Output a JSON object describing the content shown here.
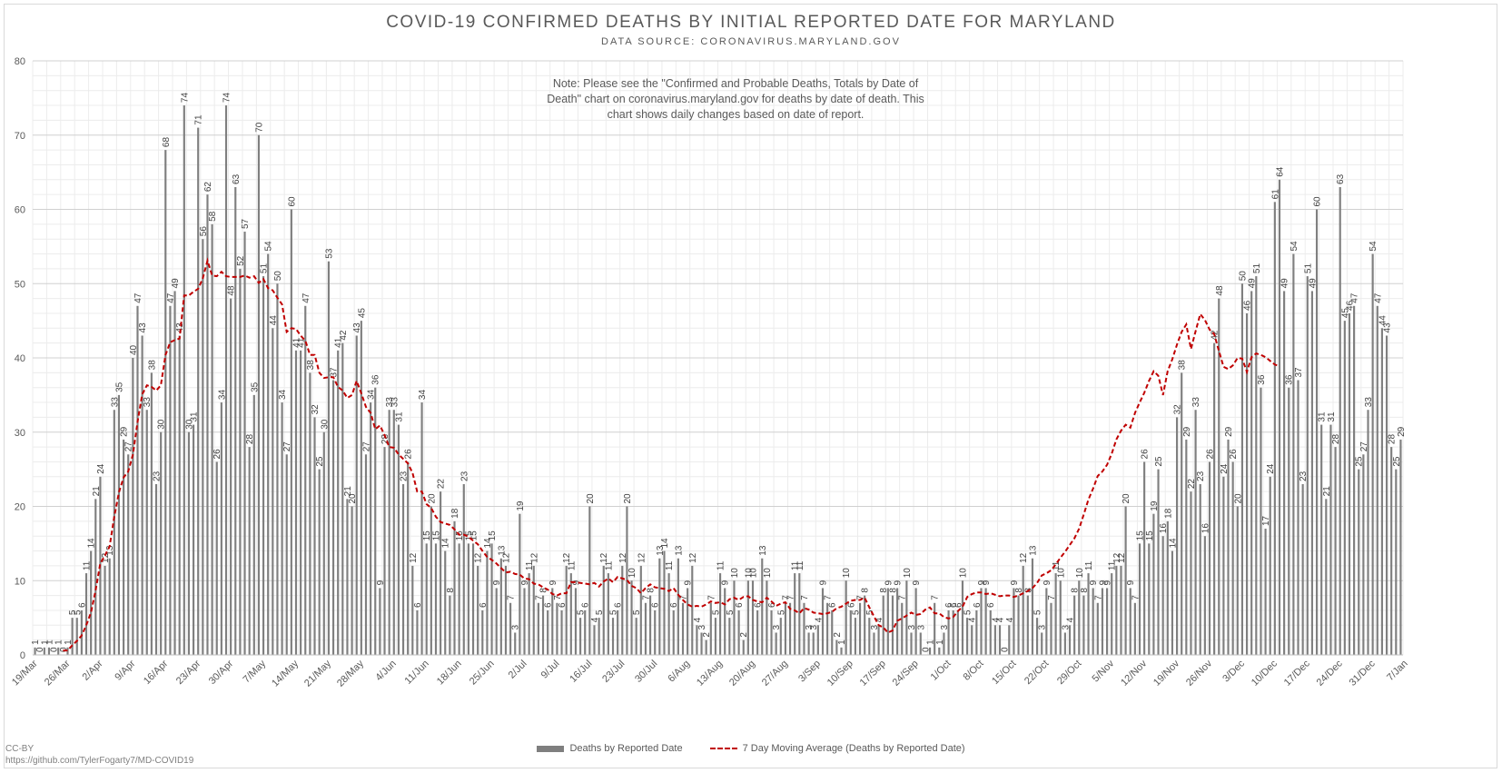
{
  "chart_data": {
    "type": "bar",
    "title": "COVID-19 CONFIRMED DEATHS BY INITIAL REPORTED DATE FOR MARYLAND",
    "subtitle": "DATA SOURCE: CORONAVIRUS.MARYLAND.GOV",
    "note": "Note: Please see the \"Confirmed and Probable Deaths, Totals by Date of Death\" chart on coronavirus.maryland.gov for deaths by date of death. This chart shows daily changes based on date of report.",
    "credit": [
      "CC-BY",
      "https://github.com/TylerFogarty7/MD-COVID19"
    ],
    "ylim": [
      0,
      80
    ],
    "yticks": [
      0,
      10,
      20,
      30,
      40,
      50,
      60,
      70,
      80
    ],
    "grid": true,
    "legend_position": "bottom-center",
    "xtick_labels": [
      "19/Mar",
      "26/Mar",
      "2/Apr",
      "9/Apr",
      "16/Apr",
      "23/Apr",
      "30/Apr",
      "7/May",
      "14/May",
      "21/May",
      "28/May",
      "4/Jun",
      "11/Jun",
      "18/Jun",
      "25/Jun",
      "2/Jul",
      "9/Jul",
      "16/Jul",
      "23/Jul",
      "30/Jul",
      "6/Aug",
      "13/Aug",
      "20/Aug",
      "27/Aug",
      "3/Sep",
      "10/Sep",
      "17/Sep",
      "24/Sep",
      "1/Oct",
      "8/Oct",
      "15/Oct",
      "22/Oct",
      "29/Oct",
      "5/Nov",
      "12/Nov",
      "19/Nov",
      "26/Nov",
      "3/Dec",
      "10/Dec",
      "17/Dec",
      "24/Dec",
      "31/Dec",
      "7/Jan"
    ],
    "series": [
      {
        "name": "Deaths by Reported Date",
        "color": "#7f7f7f",
        "values": [
          1,
          0,
          1,
          1,
          0,
          1,
          0,
          1,
          5,
          5,
          6,
          11,
          14,
          21,
          24,
          12,
          13,
          33,
          35,
          29,
          27,
          40,
          47,
          43,
          33,
          38,
          23,
          30,
          68,
          47,
          49,
          43,
          74,
          30,
          31,
          71,
          56,
          62,
          58,
          26,
          34,
          74,
          48,
          63,
          52,
          57,
          28,
          35,
          70,
          51,
          54,
          44,
          50,
          34,
          27,
          60,
          41,
          41,
          47,
          38,
          32,
          25,
          30,
          53,
          37,
          41,
          42,
          21,
          20,
          43,
          45,
          27,
          34,
          36,
          9,
          28,
          33,
          33,
          31,
          23,
          26,
          12,
          6,
          34,
          15,
          20,
          15,
          22,
          14,
          8,
          18,
          15,
          23,
          15,
          15,
          12,
          6,
          14,
          15,
          9,
          13,
          12,
          7,
          3,
          19,
          9,
          11,
          12,
          7,
          8,
          6,
          9,
          7,
          6,
          12,
          11,
          9,
          5,
          6,
          20,
          4,
          5,
          12,
          11,
          5,
          6,
          12,
          20,
          10,
          5,
          12,
          7,
          8,
          6,
          13,
          14,
          11,
          6,
          13,
          7,
          9,
          12,
          4,
          3,
          2,
          7,
          5,
          11,
          9,
          5,
          10,
          6,
          2,
          10,
          10,
          6,
          13,
          10,
          6,
          3,
          5,
          7,
          7,
          11,
          11,
          7,
          3,
          3,
          4,
          9,
          7,
          6,
          2,
          1,
          10,
          6,
          5,
          7,
          8,
          5,
          3,
          4,
          8,
          9,
          8,
          9,
          7,
          10,
          3,
          9,
          3,
          0,
          1,
          7,
          1,
          3,
          6,
          6,
          6,
          10,
          5,
          4,
          6,
          9,
          9,
          6,
          4,
          4,
          0,
          4,
          9,
          8,
          12,
          8,
          13,
          5,
          3,
          9,
          7,
          11,
          10,
          3,
          4,
          8,
          10,
          8,
          11,
          9,
          7,
          9,
          9,
          11,
          12,
          12,
          20,
          9,
          7,
          15,
          26,
          15,
          19,
          25,
          16,
          18,
          14,
          32,
          38,
          29,
          22,
          33,
          23,
          16,
          26,
          42,
          48,
          24,
          29,
          26,
          20,
          50,
          46,
          49,
          51,
          36,
          17,
          24,
          61,
          64,
          49,
          36,
          54,
          37,
          23,
          51,
          49,
          60,
          31,
          21,
          31,
          28,
          63,
          45,
          46,
          47,
          25,
          27,
          33,
          54,
          47,
          44,
          43,
          28,
          25,
          29
        ]
      },
      {
        "name": "7 Day Moving Average (Deaths by Reported Date)",
        "color": "#c00000",
        "style": "dashed",
        "values": [
          null,
          null,
          null,
          null,
          null,
          null,
          0.6,
          0.6,
          1.3,
          1.9,
          2.6,
          4.0,
          5.7,
          8.7,
          12.3,
          13.4,
          14.6,
          18.6,
          21.9,
          23.9,
          24.7,
          27.0,
          31.4,
          35.1,
          36.3,
          36.1,
          35.6,
          36.3,
          40.4,
          42.1,
          42.4,
          42.6,
          48.4,
          48.4,
          48.9,
          49.3,
          50.7,
          53.1,
          51.1,
          51.0,
          51.6,
          51.0,
          50.9,
          50.9,
          50.9,
          51.1,
          50.8,
          51.0,
          50.1,
          50.6,
          49.4,
          49.1,
          48.1,
          47.2,
          43.5,
          44.0,
          43.9,
          43.0,
          42.3,
          40.4,
          40.4,
          38.0,
          37.3,
          37.4,
          37.4,
          36.1,
          35.6,
          34.6,
          35.0,
          36.9,
          35.2,
          33.4,
          32.6,
          30.4,
          30.9,
          29.6,
          28.0,
          27.9,
          27.0,
          26.4,
          25.8,
          24.5,
          22.0,
          22.0,
          20.3,
          19.8,
          18.6,
          17.9,
          17.7,
          17.5,
          16.9,
          16.2,
          16.2,
          15.9,
          15.4,
          14.9,
          14.0,
          13.2,
          12.8,
          12.3,
          11.7,
          11.1,
          11.2,
          10.9,
          10.8,
          10.3,
          10.2,
          9.6,
          9.5,
          9.1,
          8.8,
          8.2,
          8.0,
          8.3,
          8.3,
          9.8,
          9.8,
          9.7,
          9.6,
          9.5,
          9.7,
          9.2,
          9.9,
          10.3,
          9.8,
          10.5,
          10.3,
          10.1,
          9.3,
          9.0,
          8.3,
          9.0,
          9.5,
          9.1,
          9.0,
          8.9,
          8.6,
          9.0,
          8.1,
          7.4,
          6.8,
          6.5,
          6.6,
          6.5,
          6.8,
          7.2,
          7.0,
          7.1,
          6.8,
          7.5,
          7.7,
          7.4,
          7.8,
          7.9,
          7.4,
          7.2,
          7.1,
          7.7,
          7.2,
          6.6,
          6.9,
          7.1,
          6.2,
          6.0,
          5.6,
          6.3,
          6.1,
          5.7,
          5.6,
          5.5,
          5.6,
          5.8,
          6.3,
          6.5,
          6.9,
          7.3,
          7.4,
          7.4,
          7.7,
          6.4,
          5.2,
          4.0,
          3.7,
          3.0,
          3.3,
          4.6,
          4.9,
          5.3,
          5.7,
          5.4,
          5.5,
          6.1,
          6.4,
          5.6,
          5.6,
          5.1,
          4.9,
          5.1,
          5.9,
          6.5,
          7.8,
          8.2,
          8.4,
          8.4,
          8.2,
          8.3,
          8.1,
          7.9,
          8.0,
          8.0,
          7.8,
          8.0,
          8.3,
          8.6,
          9.0,
          9.7,
          10.7,
          11.0,
          11.4,
          12.2,
          13.1,
          13.9,
          14.8,
          15.7,
          17.0,
          18.9,
          20.9,
          22.4,
          24.1,
          24.7,
          25.6,
          27.1,
          29.0,
          30.2,
          31.0,
          30.6,
          32.6,
          34.0,
          35.3,
          36.9,
          38.2,
          37.6,
          35.0,
          38.2,
          39.8,
          41.8,
          43.5,
          44.5,
          41.2,
          43.6,
          45.9,
          45.1,
          43.8,
          43.2,
          40.9,
          38.8,
          38.5,
          39.0,
          40.0,
          39.9,
          38.1,
          40.1,
          40.6,
          40.4,
          40.1,
          39.6,
          39.1,
          38.9
        ]
      }
    ]
  }
}
